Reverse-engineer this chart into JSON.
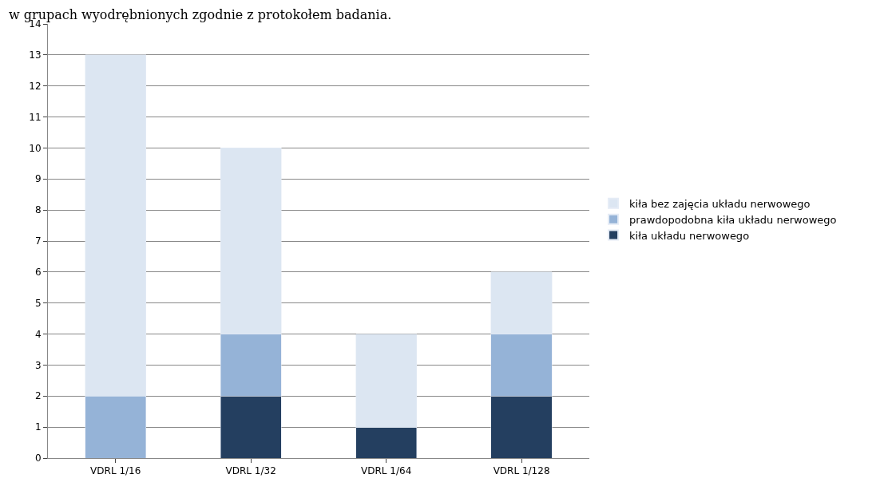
{
  "chart_data": {
    "type": "bar",
    "stacked": true,
    "annotations": [
      "w grupach wyodrębnionych zgodnie z protokołem badania."
    ],
    "categories": [
      "VDRL 1/16",
      "VDRL 1/32",
      "VDRL 1/64",
      "VDRL 1/128"
    ],
    "series": [
      {
        "name": "kiła układu nerwowego",
        "color": "#243f60",
        "values": [
          0,
          2,
          1,
          2
        ]
      },
      {
        "name": "prawdopodobna kiła układu nerwowego",
        "color": "#95b3d7",
        "values": [
          2,
          2,
          0,
          2
        ]
      },
      {
        "name": "kiła bez zajęcia układu nerwowego",
        "color": "#dce6f2",
        "values": [
          11,
          6,
          3,
          2
        ]
      }
    ],
    "ylim": [
      0,
      14
    ],
    "yticks": [
      0,
      1,
      2,
      3,
      4,
      5,
      6,
      7,
      8,
      9,
      10,
      11,
      12,
      13,
      14
    ],
    "grid": "y",
    "legend": "right"
  }
}
